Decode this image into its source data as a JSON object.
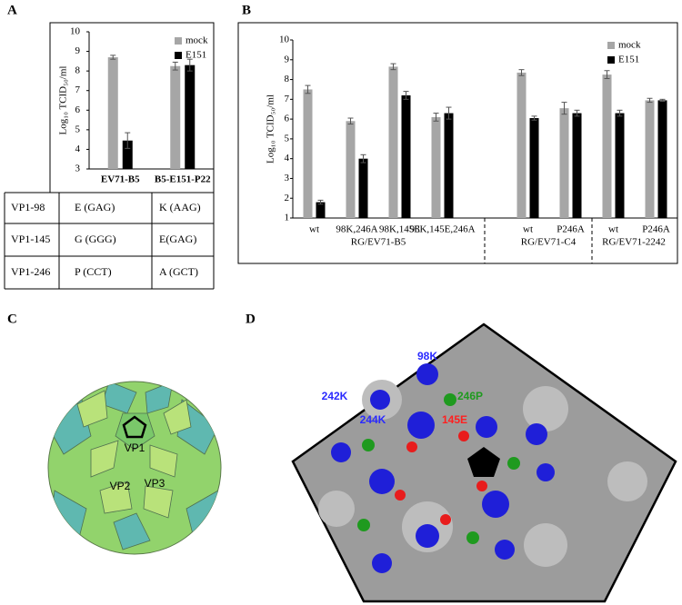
{
  "panel_labels": [
    "A",
    "B",
    "C",
    "D"
  ],
  "chart_data": [
    {
      "type": "bar",
      "y_label": "Log₁₀ TCID₅₀/ml",
      "categories": [
        "EV71-B5",
        "B5-E151-P22"
      ],
      "series": [
        {
          "name": "mock",
          "color": "#a6a6a6",
          "values": [
            8.7,
            8.25
          ],
          "errors": [
            0.1,
            0.2
          ]
        },
        {
          "name": "E151",
          "color": "#000000",
          "values": [
            4.45,
            8.3
          ],
          "errors": [
            0.4,
            0.3
          ]
        }
      ],
      "ylim": [
        3,
        10
      ],
      "yticks": [
        3,
        4,
        5,
        6,
        7,
        8,
        9,
        10
      ],
      "legend": "top-right"
    },
    {
      "type": "bar",
      "y_label": "Log₁₀ TCID₅₀/ml",
      "categories": [
        "wt",
        "98K,246A",
        "98K,145E",
        "98K,145E,246A",
        null,
        "wt",
        "P246A",
        "wt",
        "P246A"
      ],
      "group_labels": [
        "RG/EV71-B5",
        "RG/EV71-C4",
        "RG/EV71-2242"
      ],
      "series": [
        {
          "name": "mock",
          "color": "#a6a6a6",
          "values": [
            7.5,
            5.9,
            8.65,
            6.1,
            null,
            8.35,
            6.55,
            8.25,
            6.95
          ],
          "errors": [
            0.2,
            0.15,
            0.15,
            0.2,
            null,
            0.15,
            0.3,
            0.2,
            0.1
          ]
        },
        {
          "name": "E151",
          "color": "#000000",
          "values": [
            1.8,
            4.0,
            7.2,
            6.3,
            null,
            6.05,
            6.3,
            6.3,
            6.95
          ],
          "errors": [
            0.1,
            0.2,
            0.2,
            0.3,
            null,
            0.1,
            0.15,
            0.15,
            0.05
          ]
        }
      ],
      "ylim": [
        1,
        10
      ],
      "yticks": [
        1,
        2,
        3,
        4,
        5,
        6,
        7,
        8,
        9,
        10
      ],
      "legend": "top-right"
    }
  ],
  "table": {
    "rows": [
      [
        "VP1-98",
        "E (GAG)",
        "K (AAG)"
      ],
      [
        "VP1-145",
        "G (GGG)",
        "E(GAG)"
      ],
      [
        "VP1-246",
        "P (CCT)",
        "A (GCT)"
      ]
    ]
  },
  "capsid_labels": [
    "VP1",
    "VP2",
    "VP3"
  ],
  "structure_labels": [
    {
      "text": "98K",
      "color": "#2a2aff"
    },
    {
      "text": "242K",
      "color": "#2a2aff"
    },
    {
      "text": "246P",
      "color": "#1f9a1f"
    },
    {
      "text": "244K",
      "color": "#2a2aff"
    },
    {
      "text": "145E",
      "color": "#ff2020"
    }
  ]
}
